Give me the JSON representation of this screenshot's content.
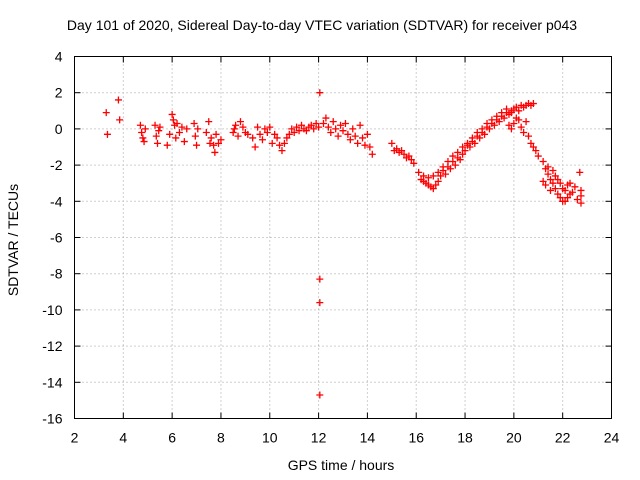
{
  "chart_data": {
    "type": "scatter",
    "title": "Day 101 of 2020, Sidereal Day-to-day VTEC variation (SDTVAR) for receiver p043",
    "xlabel": "GPS time / hours",
    "ylabel": "SDTVAR / TECUs",
    "xlim": [
      2,
      24
    ],
    "ylim": [
      -16,
      4
    ],
    "xticks": [
      2,
      4,
      6,
      8,
      10,
      12,
      14,
      16,
      18,
      20,
      22,
      24
    ],
    "yticks": [
      4,
      2,
      0,
      -2,
      -4,
      -6,
      -8,
      -10,
      -12,
      -14,
      -16
    ],
    "grid": true,
    "marker": "+",
    "color": "#ff0000",
    "series": [
      {
        "name": "SDTVAR",
        "points": [
          [
            3.3,
            0.9
          ],
          [
            3.35,
            -0.3
          ],
          [
            3.8,
            1.6
          ],
          [
            3.85,
            0.5
          ],
          [
            4.7,
            0.2
          ],
          [
            4.75,
            -0.2
          ],
          [
            4.8,
            -0.5
          ],
          [
            4.85,
            -0.7
          ],
          [
            4.9,
            0.0
          ],
          [
            5.3,
            0.2
          ],
          [
            5.35,
            -0.4
          ],
          [
            5.4,
            -0.8
          ],
          [
            5.45,
            -0.1
          ],
          [
            5.5,
            0.1
          ],
          [
            5.8,
            -0.9
          ],
          [
            5.9,
            -0.3
          ],
          [
            6.0,
            0.8
          ],
          [
            6.05,
            0.5
          ],
          [
            6.1,
            0.2
          ],
          [
            6.15,
            -0.5
          ],
          [
            6.2,
            0.3
          ],
          [
            6.3,
            -0.2
          ],
          [
            6.4,
            0.1
          ],
          [
            6.5,
            -0.7
          ],
          [
            6.6,
            0.0
          ],
          [
            6.9,
            0.3
          ],
          [
            6.95,
            -0.4
          ],
          [
            7.0,
            -0.9
          ],
          [
            7.05,
            0.0
          ],
          [
            7.4,
            -0.2
          ],
          [
            7.5,
            0.4
          ],
          [
            7.55,
            -0.8
          ],
          [
            7.6,
            -0.5
          ],
          [
            7.7,
            -0.9
          ],
          [
            7.75,
            -1.3
          ],
          [
            7.8,
            -0.3
          ],
          [
            7.9,
            -0.8
          ],
          [
            8.0,
            -0.6
          ],
          [
            8.5,
            -0.2
          ],
          [
            8.55,
            0.0
          ],
          [
            8.6,
            0.2
          ],
          [
            8.7,
            -0.4
          ],
          [
            8.8,
            0.4
          ],
          [
            8.9,
            0.1
          ],
          [
            9.0,
            -0.2
          ],
          [
            9.1,
            -0.3
          ],
          [
            9.3,
            -0.5
          ],
          [
            9.4,
            -1.0
          ],
          [
            9.5,
            0.1
          ],
          [
            9.6,
            -0.3
          ],
          [
            9.7,
            -0.6
          ],
          [
            9.8,
            0.0
          ],
          [
            9.9,
            -0.2
          ],
          [
            10.0,
            0.1
          ],
          [
            10.1,
            -0.8
          ],
          [
            10.2,
            -0.3
          ],
          [
            10.3,
            -0.5
          ],
          [
            10.4,
            -0.9
          ],
          [
            10.5,
            -1.2
          ],
          [
            10.6,
            -0.8
          ],
          [
            10.7,
            -0.5
          ],
          [
            10.8,
            -0.3
          ],
          [
            10.9,
            0.0
          ],
          [
            11.0,
            -0.2
          ],
          [
            11.1,
            0.1
          ],
          [
            11.2,
            -0.1
          ],
          [
            11.3,
            0.2
          ],
          [
            11.4,
            0.0
          ],
          [
            11.5,
            -0.1
          ],
          [
            11.6,
            0.1
          ],
          [
            11.7,
            0.2
          ],
          [
            11.8,
            0.0
          ],
          [
            11.9,
            0.3
          ],
          [
            12.0,
            0.1
          ],
          [
            12.05,
            2.0
          ],
          [
            12.05,
            -8.3
          ],
          [
            12.05,
            -9.6
          ],
          [
            12.05,
            -14.7
          ],
          [
            12.2,
            0.3
          ],
          [
            12.3,
            0.6
          ],
          [
            12.4,
            0.1
          ],
          [
            12.5,
            -0.2
          ],
          [
            12.6,
            0.4
          ],
          [
            12.7,
            0.0
          ],
          [
            12.8,
            -0.4
          ],
          [
            12.9,
            0.2
          ],
          [
            13.0,
            -0.1
          ],
          [
            13.1,
            0.3
          ],
          [
            13.2,
            -0.3
          ],
          [
            13.3,
            -0.6
          ],
          [
            13.4,
            0.0
          ],
          [
            13.5,
            -0.4
          ],
          [
            13.6,
            -0.8
          ],
          [
            13.7,
            0.2
          ],
          [
            13.8,
            -0.5
          ],
          [
            13.9,
            -0.9
          ],
          [
            14.0,
            -0.3
          ],
          [
            14.1,
            -1.0
          ],
          [
            14.2,
            -1.4
          ],
          [
            15.0,
            -0.8
          ],
          [
            15.1,
            -1.2
          ],
          [
            15.2,
            -1.1
          ],
          [
            15.3,
            -1.3
          ],
          [
            15.4,
            -1.2
          ],
          [
            15.5,
            -1.4
          ],
          [
            15.6,
            -1.6
          ],
          [
            15.7,
            -1.5
          ],
          [
            15.8,
            -1.7
          ],
          [
            15.9,
            -1.9
          ],
          [
            16.1,
            -2.4
          ],
          [
            16.2,
            -2.8
          ],
          [
            16.3,
            -2.6
          ],
          [
            16.4,
            -3.0
          ],
          [
            16.5,
            -3.1
          ],
          [
            16.6,
            -3.2
          ],
          [
            16.7,
            -3.3
          ],
          [
            16.8,
            -3.1
          ],
          [
            16.9,
            -2.9
          ],
          [
            17.0,
            -2.6
          ],
          [
            17.1,
            -2.3
          ],
          [
            17.2,
            -2.5
          ],
          [
            17.3,
            -2.1
          ],
          [
            17.4,
            -2.2
          ],
          [
            17.5,
            -1.8
          ],
          [
            17.6,
            -2.0
          ],
          [
            17.7,
            -1.6
          ],
          [
            17.8,
            -1.7
          ],
          [
            17.9,
            -1.4
          ],
          [
            18.0,
            -1.2
          ],
          [
            18.1,
            -0.9
          ],
          [
            18.2,
            -1.0
          ],
          [
            18.3,
            -0.7
          ],
          [
            18.4,
            -0.8
          ],
          [
            18.5,
            -0.4
          ],
          [
            18.6,
            -0.5
          ],
          [
            18.7,
            -0.2
          ],
          [
            18.8,
            -0.3
          ],
          [
            18.9,
            0.1
          ],
          [
            19.0,
            0.0
          ],
          [
            19.1,
            0.3
          ],
          [
            19.2,
            0.2
          ],
          [
            19.3,
            0.5
          ],
          [
            19.4,
            0.4
          ],
          [
            19.5,
            0.7
          ],
          [
            19.6,
            0.6
          ],
          [
            19.7,
            0.9
          ],
          [
            19.8,
            0.8
          ],
          [
            19.9,
            1.0
          ],
          [
            20.0,
            1.1
          ],
          [
            20.1,
            1.2
          ],
          [
            20.2,
            1.0
          ],
          [
            20.3,
            1.3
          ],
          [
            20.4,
            1.2
          ],
          [
            20.5,
            1.3
          ],
          [
            20.6,
            1.4
          ],
          [
            20.7,
            1.3
          ],
          [
            20.8,
            1.4
          ],
          [
            16.3,
            -2.9
          ],
          [
            16.5,
            -2.7
          ],
          [
            16.7,
            -2.6
          ],
          [
            16.9,
            -2.4
          ],
          [
            17.1,
            -2.1
          ],
          [
            17.3,
            -1.8
          ],
          [
            17.5,
            -1.5
          ],
          [
            17.7,
            -1.3
          ],
          [
            17.9,
            -1.0
          ],
          [
            18.1,
            -0.8
          ],
          [
            18.3,
            -0.5
          ],
          [
            18.5,
            -0.2
          ],
          [
            18.7,
            0.0
          ],
          [
            18.9,
            0.3
          ],
          [
            19.1,
            0.5
          ],
          [
            19.3,
            0.7
          ],
          [
            19.5,
            0.9
          ],
          [
            19.7,
            1.1
          ],
          [
            19.9,
            0.9
          ],
          [
            20.1,
            0.6
          ],
          [
            19.8,
            0.2
          ],
          [
            19.9,
            0.0
          ],
          [
            20.0,
            0.3
          ],
          [
            20.2,
            0.5
          ],
          [
            20.3,
            0.1
          ],
          [
            20.4,
            -0.2
          ],
          [
            20.5,
            0.4
          ],
          [
            20.6,
            -0.4
          ],
          [
            20.7,
            -0.8
          ],
          [
            20.8,
            -1.0
          ],
          [
            20.9,
            -1.2
          ],
          [
            21.0,
            -1.5
          ],
          [
            21.2,
            -1.8
          ],
          [
            21.3,
            -2.2
          ],
          [
            21.4,
            -2.5
          ],
          [
            21.5,
            -2.8
          ],
          [
            21.6,
            -3.0
          ],
          [
            21.7,
            -3.3
          ],
          [
            21.8,
            -3.6
          ],
          [
            21.9,
            -3.8
          ],
          [
            22.0,
            -4.0
          ],
          [
            22.1,
            -4.0
          ],
          [
            22.2,
            -3.8
          ],
          [
            22.3,
            -3.6
          ],
          [
            21.2,
            -2.9
          ],
          [
            21.3,
            -3.1
          ],
          [
            21.4,
            -2.1
          ],
          [
            21.5,
            -3.4
          ],
          [
            21.6,
            -2.3
          ],
          [
            21.7,
            -2.6
          ],
          [
            21.8,
            -2.8
          ],
          [
            21.9,
            -3.0
          ],
          [
            22.0,
            -3.3
          ],
          [
            22.1,
            -3.4
          ],
          [
            22.2,
            -3.1
          ],
          [
            22.3,
            -3.0
          ],
          [
            22.4,
            -3.5
          ],
          [
            22.5,
            -3.2
          ],
          [
            22.6,
            -3.9
          ],
          [
            22.7,
            -2.4
          ],
          [
            22.75,
            -3.4
          ],
          [
            22.75,
            -3.7
          ],
          [
            22.75,
            -4.1
          ]
        ]
      }
    ]
  }
}
